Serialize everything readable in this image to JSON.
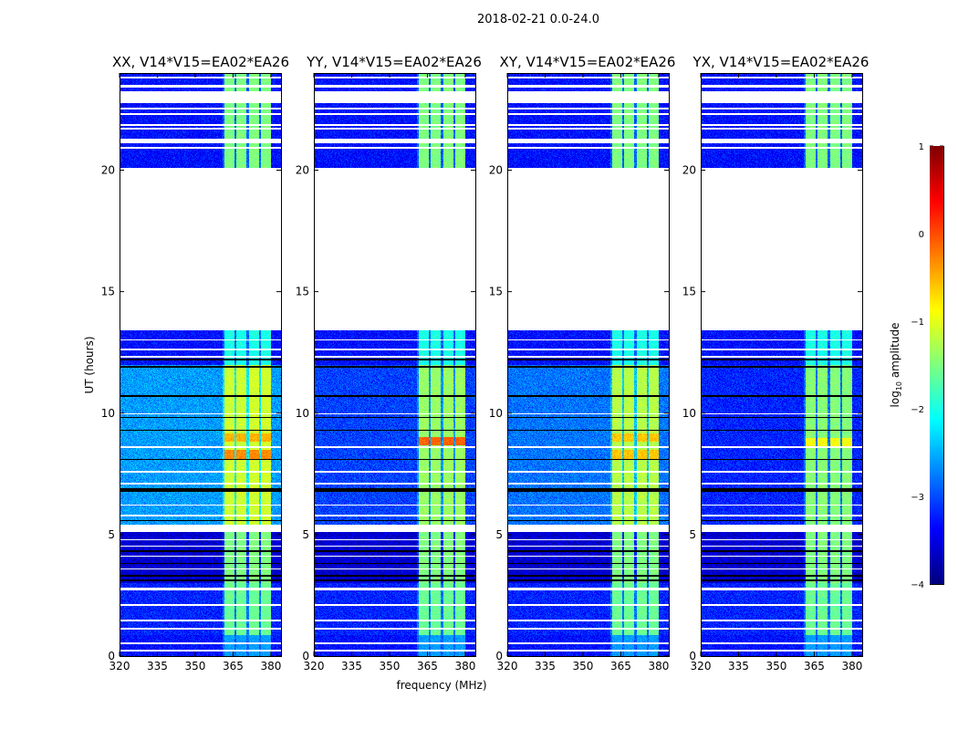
{
  "chart_data": {
    "type": "heatmap",
    "title": "2018-02-21 0.0-24.0",
    "xlabel": "frequency (MHz)",
    "ylabel": "UT (hours)",
    "xlim": [
      320,
      384
    ],
    "ylim": [
      0,
      24
    ],
    "xticks": [
      320,
      335,
      350,
      365,
      380
    ],
    "yticks": [
      0,
      5,
      10,
      15,
      20
    ],
    "colormap": "jet",
    "colorbar": {
      "label_main": "log",
      "label_sub": "10",
      "label_rest": " amplitude",
      "range": [
        -4,
        1
      ],
      "ticks": [
        1,
        0,
        -1,
        -2,
        -3,
        -4
      ]
    },
    "panels": [
      {
        "title": "XX, V14*V15=EA02*EA26",
        "offset": 0.0,
        "peaks": [
          {
            "t": 8.3,
            "v": -0.3
          },
          {
            "t": 9.0,
            "v": -0.5
          }
        ]
      },
      {
        "title": "YY, V14*V15=EA02*EA26",
        "offset": -0.45,
        "peaks": [
          {
            "t": 8.85,
            "v": -0.1
          }
        ]
      },
      {
        "title": "XY, V14*V15=EA02*EA26",
        "offset": -0.2,
        "peaks": [
          {
            "t": 8.3,
            "v": -0.6
          },
          {
            "t": 9.0,
            "v": -0.6
          }
        ]
      },
      {
        "title": "YX, V14*V15=EA02*EA26",
        "offset": -0.6,
        "peaks": [
          {
            "t": 8.8,
            "v": -0.9
          }
        ]
      }
    ],
    "signal_band_mhz": [
      360.5,
      380
    ],
    "signal_subbands": 4,
    "time_blocks": [
      {
        "start": 0,
        "end": 0.85,
        "base": -3.3,
        "signal": -2.6
      },
      {
        "start": 0.85,
        "end": 3.0,
        "base": -3.2,
        "signal": -1.6
      },
      {
        "start": 3.0,
        "end": 5.1,
        "base": -3.6,
        "signal": -1.5
      },
      {
        "start": 5.1,
        "end": 5.4,
        "blank": true
      },
      {
        "start": 5.4,
        "end": 12.0,
        "base": -2.6,
        "signal": -1.1,
        "panel_offset": true
      },
      {
        "start": 12.0,
        "end": 13.4,
        "base": -3.3,
        "signal": -2.0
      },
      {
        "start": 13.4,
        "end": 20.1,
        "blank": true
      },
      {
        "start": 20.1,
        "end": 24,
        "base": -3.3,
        "signal": -1.5
      }
    ],
    "flagged_rows": [
      [
        0.18,
        0.25
      ],
      [
        0.48,
        0.55
      ],
      [
        1.08,
        1.15
      ],
      [
        1.42,
        1.5
      ],
      [
        2.08,
        2.14
      ],
      [
        2.72,
        2.8
      ],
      [
        3.55,
        3.6
      ],
      [
        4.08,
        4.13
      ],
      [
        4.5,
        4.56
      ],
      [
        4.78,
        4.82
      ],
      [
        5.75,
        5.82
      ],
      [
        6.18,
        6.24
      ],
      [
        7.05,
        7.12
      ],
      [
        7.55,
        7.62
      ],
      [
        8.55,
        8.62
      ],
      [
        9.95,
        10.0
      ],
      [
        12.3,
        12.36
      ],
      [
        12.6,
        12.66
      ],
      [
        12.98,
        13.05
      ],
      [
        20.88,
        20.95
      ],
      [
        21.1,
        21.3
      ],
      [
        21.68,
        21.74
      ],
      [
        21.84,
        21.9
      ],
      [
        22.28,
        22.34
      ],
      [
        22.5,
        22.56
      ],
      [
        22.76,
        23.25
      ],
      [
        23.4,
        23.5
      ],
      [
        23.78,
        23.84
      ]
    ],
    "dropout_rows": [
      [
        3.08,
        3.15
      ],
      [
        3.28,
        3.34
      ],
      [
        3.78,
        3.84
      ],
      [
        4.28,
        4.34
      ],
      [
        5.55,
        5.6
      ],
      [
        6.75,
        6.9
      ],
      [
        8.08,
        8.13
      ],
      [
        9.28,
        9.33
      ],
      [
        9.8,
        9.85
      ],
      [
        10.68,
        10.74
      ],
      [
        11.88,
        11.95
      ],
      [
        12.18,
        12.24
      ]
    ]
  }
}
